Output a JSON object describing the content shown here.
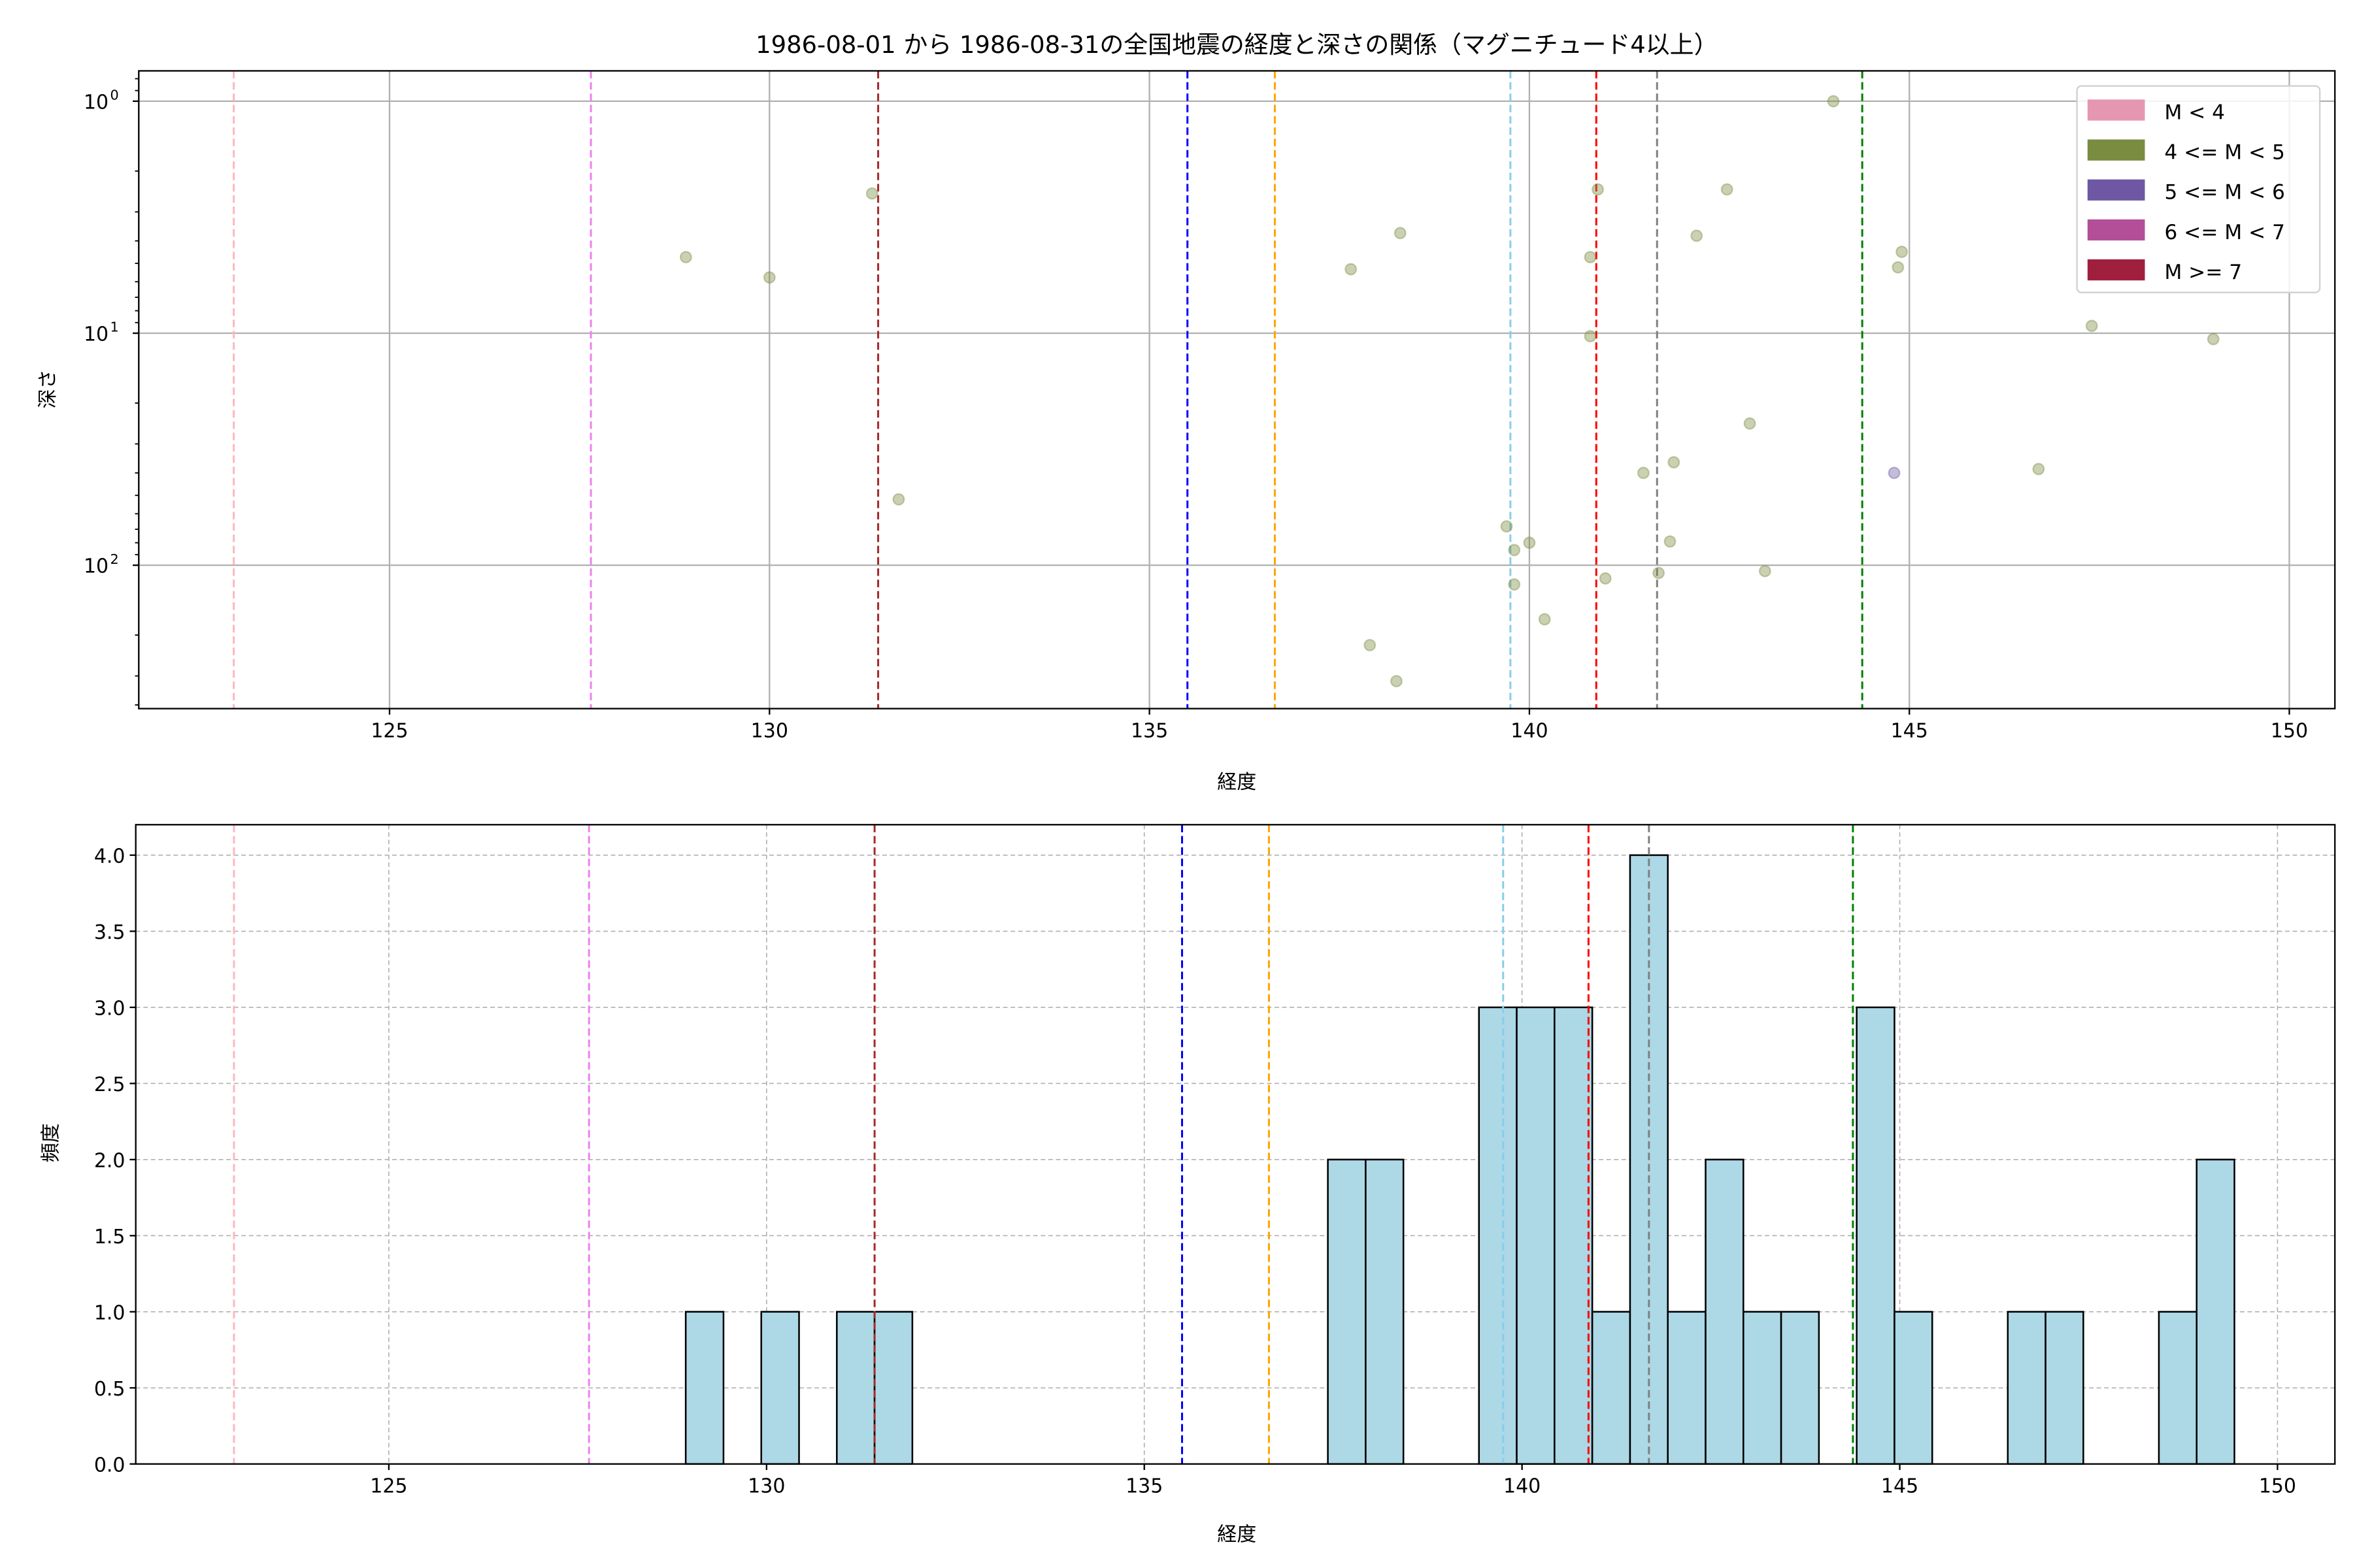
{
  "chart_data": [
    {
      "type": "scatter",
      "title": "1986-08-01 から 1986-08-31の全国地震の経度と深さの関係（マグニチュード4以上）",
      "xlabel": "経度",
      "ylabel": "深さ",
      "xlim": [
        121.7,
        150.6
      ],
      "ylim": [
        415,
        0.74
      ],
      "yscale": "log",
      "yinverted": true,
      "grid": true,
      "xticks": [
        125,
        130,
        135,
        140,
        145,
        150
      ],
      "yticks": [
        {
          "v": 1,
          "label": "10",
          "exp": "0"
        },
        {
          "v": 10,
          "label": "10",
          "exp": "1"
        },
        {
          "v": 100,
          "label": "10",
          "exp": "2"
        }
      ],
      "legend": {
        "placement": "top-right",
        "entries": [
          {
            "label": "M < 4",
            "color": "#e597b2"
          },
          {
            "label": "4 <= M < 5",
            "color": "#7a8c40"
          },
          {
            "label": "5 <= M < 6",
            "color": "#6f58a3"
          },
          {
            "label": "6 <= M < 7",
            "color": "#b34f98"
          },
          {
            "label": "M >= 7",
            "color": "#a11f3e"
          }
        ]
      },
      "points": [
        {
          "x": 128.9,
          "y": 4.7,
          "class": 1
        },
        {
          "x": 130.0,
          "y": 5.75,
          "class": 1
        },
        {
          "x": 131.35,
          "y": 2.5,
          "class": 1
        },
        {
          "x": 131.7,
          "y": 52,
          "class": 1
        },
        {
          "x": 137.65,
          "y": 5.3,
          "class": 1
        },
        {
          "x": 138.3,
          "y": 3.7,
          "class": 1
        },
        {
          "x": 137.9,
          "y": 221,
          "class": 1
        },
        {
          "x": 138.25,
          "y": 316,
          "class": 1
        },
        {
          "x": 139.7,
          "y": 68,
          "class": 1
        },
        {
          "x": 139.8,
          "y": 86,
          "class": 1
        },
        {
          "x": 139.8,
          "y": 121,
          "class": 1
        },
        {
          "x": 140.0,
          "y": 80,
          "class": 1
        },
        {
          "x": 140.2,
          "y": 171,
          "class": 1
        },
        {
          "x": 140.9,
          "y": 2.4,
          "class": 1
        },
        {
          "x": 140.8,
          "y": 4.7,
          "class": 1
        },
        {
          "x": 140.8,
          "y": 10.3,
          "class": 1
        },
        {
          "x": 141.0,
          "y": 114,
          "class": 1
        },
        {
          "x": 141.7,
          "y": 108,
          "class": 1
        },
        {
          "x": 141.85,
          "y": 79,
          "class": 1
        },
        {
          "x": 141.9,
          "y": 36,
          "class": 1
        },
        {
          "x": 141.5,
          "y": 40,
          "class": 1
        },
        {
          "x": 142.2,
          "y": 3.8,
          "class": 1
        },
        {
          "x": 142.6,
          "y": 2.4,
          "class": 1
        },
        {
          "x": 142.9,
          "y": 24.5,
          "class": 1
        },
        {
          "x": 143.1,
          "y": 106,
          "class": 1
        },
        {
          "x": 144.0,
          "y": 1.0,
          "class": 1
        },
        {
          "x": 144.9,
          "y": 4.46,
          "class": 1
        },
        {
          "x": 144.85,
          "y": 5.2,
          "class": 1
        },
        {
          "x": 144.8,
          "y": 40,
          "class": 2
        },
        {
          "x": 146.7,
          "y": 38.5,
          "class": 1
        },
        {
          "x": 147.4,
          "y": 9.3,
          "class": 1
        },
        {
          "x": 149.0,
          "y": 10.6,
          "class": 1
        }
      ],
      "vlines": [
        {
          "x": 122.95,
          "color": "#ffb6c1"
        },
        {
          "x": 127.65,
          "color": "#ee82ee"
        },
        {
          "x": 131.43,
          "color": "#a52a2a"
        },
        {
          "x": 135.5,
          "color": "#0000ff"
        },
        {
          "x": 136.65,
          "color": "#ffa500"
        },
        {
          "x": 139.75,
          "color": "#87ceeb"
        },
        {
          "x": 140.88,
          "color": "#ff0000"
        },
        {
          "x": 141.68,
          "color": "#808080"
        },
        {
          "x": 144.38,
          "color": "#008000"
        }
      ]
    },
    {
      "type": "bar",
      "xlabel": "経度",
      "ylabel": "頻度",
      "xlim": [
        121.65,
        150.76
      ],
      "ylim": [
        0,
        4.2
      ],
      "grid": true,
      "bin_width": 0.5,
      "xticks": [
        125,
        130,
        135,
        140,
        145,
        150
      ],
      "yticks": [
        "0.0",
        "0.5",
        "1.0",
        "1.5",
        "2.0",
        "2.5",
        "3.0",
        "3.5",
        "4.0"
      ],
      "bar_color": "#add8e6",
      "bins": [
        {
          "x": 128.93,
          "count": 1
        },
        {
          "x": 129.93,
          "count": 1
        },
        {
          "x": 130.93,
          "count": 1
        },
        {
          "x": 131.43,
          "count": 1
        },
        {
          "x": 137.43,
          "count": 2
        },
        {
          "x": 137.93,
          "count": 2
        },
        {
          "x": 139.43,
          "count": 3
        },
        {
          "x": 139.93,
          "count": 3
        },
        {
          "x": 140.43,
          "count": 3
        },
        {
          "x": 140.93,
          "count": 1
        },
        {
          "x": 141.43,
          "count": 4
        },
        {
          "x": 141.93,
          "count": 1
        },
        {
          "x": 142.43,
          "count": 2
        },
        {
          "x": 142.93,
          "count": 1
        },
        {
          "x": 143.43,
          "count": 1
        },
        {
          "x": 144.43,
          "count": 3
        },
        {
          "x": 144.93,
          "count": 1
        },
        {
          "x": 146.43,
          "count": 1
        },
        {
          "x": 146.93,
          "count": 1
        },
        {
          "x": 148.43,
          "count": 1
        },
        {
          "x": 148.93,
          "count": 2
        }
      ],
      "vlines": [
        {
          "x": 122.95,
          "color": "#ffb6c1"
        },
        {
          "x": 127.65,
          "color": "#ee82ee"
        },
        {
          "x": 131.43,
          "color": "#a52a2a"
        },
        {
          "x": 135.5,
          "color": "#0000ff"
        },
        {
          "x": 136.65,
          "color": "#ffa500"
        },
        {
          "x": 139.75,
          "color": "#87ceeb"
        },
        {
          "x": 140.88,
          "color": "#ff0000"
        },
        {
          "x": 141.68,
          "color": "#808080"
        },
        {
          "x": 144.38,
          "color": "#008000"
        }
      ]
    }
  ]
}
